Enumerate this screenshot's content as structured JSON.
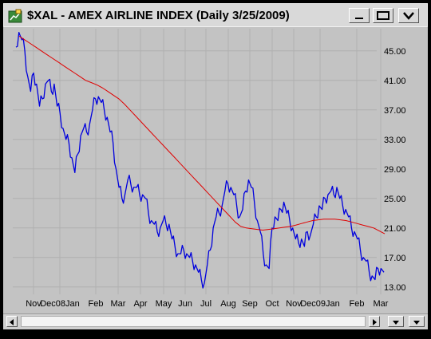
{
  "window": {
    "title": "$XAL - AMEX AIRLINE INDEX (Daily 3/25/2009)",
    "icons": [
      "chart-app-icon",
      "minimize-icon",
      "restore-icon",
      "chevron-down-icon"
    ]
  },
  "colors": {
    "price": "#0000dd",
    "moving_average": "#e00000",
    "plot_bg": "#c3c3c3"
  },
  "chart_data": {
    "type": "line",
    "title": "$XAL - AMEX AIRLINE INDEX (Daily 3/25/2009)",
    "x_tick_labels": [
      "Nov",
      "Dec08Jan",
      "Feb",
      "Mar",
      "Apr",
      "May",
      "Jun",
      "Jul",
      "Aug",
      "Sep",
      "Oct",
      "Nov",
      "Dec09Jan",
      "Feb",
      "Mar"
    ],
    "y_tick_labels": [
      "13.00",
      "17.00",
      "21.00",
      "25.00",
      "29.00",
      "33.00",
      "37.00",
      "41.00",
      "45.00"
    ],
    "yticks": [
      13,
      17,
      21,
      25,
      29,
      33,
      37,
      41,
      45
    ],
    "ylim": [
      12,
      48
    ],
    "grid": true,
    "series": [
      {
        "role": "price",
        "color": "#0000dd",
        "values": [
          45.5,
          47.5,
          46.5,
          45,
          41.5,
          39.5,
          42,
          40.5,
          37.5,
          38.5,
          40.5,
          41,
          39.5,
          40.5,
          37.5,
          36.5,
          34.5,
          33,
          32.5,
          30.5,
          28.5,
          31,
          33.5,
          34.5,
          34,
          35,
          37,
          38.5,
          38.8,
          38,
          37,
          36,
          34,
          32.5,
          29,
          26.5,
          25,
          25.5,
          27.5,
          27,
          26.5,
          26.5,
          25.5,
          25.5,
          25,
          23,
          22,
          21.5,
          20.5,
          21,
          22,
          21.5,
          21.5,
          19.5,
          18.5,
          17.5,
          17.5,
          18,
          17.5,
          17,
          16.5,
          16,
          15,
          14,
          13.5,
          16,
          18,
          21,
          22.5,
          23,
          24,
          26,
          27,
          26.5,
          25.5,
          24,
          22.5,
          23.5,
          26,
          27.5,
          26.5,
          24.5,
          22,
          20.5,
          17.5,
          16,
          15.5,
          21,
          22.5,
          22,
          23.5,
          24.5,
          23,
          22,
          21,
          19.5,
          19,
          19.5,
          18.5,
          20.5,
          20,
          21.5,
          22.5,
          24,
          23.5,
          25,
          25.5,
          26,
          25.5,
          26.5,
          25,
          24,
          23.5,
          22.5,
          21,
          20.5,
          19.5,
          18,
          17,
          16.5,
          15,
          14.5,
          14,
          15.5,
          15.5,
          15
        ]
      },
      {
        "role": "moving_average",
        "color": "#e00000",
        "values": [
          47,
          46.5,
          46,
          45.5,
          45,
          44.5,
          44,
          43.5,
          43,
          42.5,
          42,
          41.5,
          41,
          40.7,
          40.4,
          40,
          39.5,
          39,
          38.5,
          37.8,
          37,
          36.2,
          35.4,
          34.6,
          33.8,
          33,
          32.2,
          31.4,
          30.6,
          29.8,
          29,
          28.2,
          27.4,
          26.6,
          25.8,
          25,
          24.2,
          23.4,
          22.6,
          21.8,
          21.2,
          21,
          20.9,
          20.8,
          20.7,
          20.8,
          20.9,
          21,
          21.1,
          21.2,
          21.4,
          21.6,
          21.8,
          22,
          22.1,
          22.2,
          22.2,
          22.2,
          22.1,
          22,
          21.8,
          21.6,
          21.4,
          21.2,
          21,
          20.6,
          20.2
        ]
      }
    ]
  }
}
